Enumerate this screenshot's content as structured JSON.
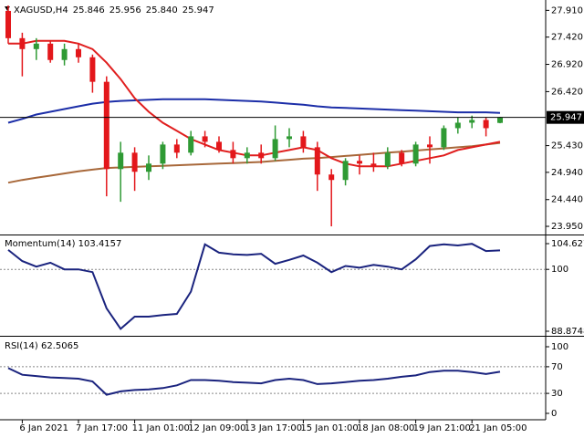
{
  "chart_data": [
    {
      "type": "candlestick",
      "title": "XAGUSD,H4",
      "header_values": [
        25.846,
        25.956,
        {
          "value": 25.84,
          "label": "25.840"
        },
        25.947
      ],
      "last_price": 25.947,
      "categories": [
        null,
        "6 Jan 2021",
        null,
        null,
        null,
        "7 Jan 17:00",
        null,
        null,
        null,
        "11 Jan 01:00",
        null,
        null,
        null,
        "12 Jan 09:00",
        null,
        null,
        null,
        "13 Jan 17:00",
        null,
        null,
        null,
        "15 Jan 01:00",
        null,
        null,
        null,
        "18 Jan 08:00",
        null,
        null,
        null,
        "19 Jan 21:00",
        null,
        null,
        null,
        "21 Jan 05:00",
        null,
        null
      ],
      "open": [
        27.9,
        27.4,
        27.2,
        27.3,
        27.0,
        27.2,
        27.05,
        26.6,
        25.0,
        25.3,
        24.95,
        25.1,
        25.45,
        25.3,
        25.6,
        25.5,
        25.35,
        25.2,
        25.3,
        25.2,
        25.55,
        25.6,
        25.4,
        24.9,
        24.8,
        25.15,
        25.1,
        25.05,
        25.3,
        25.1,
        25.45,
        25.4,
        25.75,
        25.85,
        25.9,
        25.846
      ],
      "high": [
        28.0,
        27.5,
        27.4,
        27.35,
        27.3,
        27.3,
        27.1,
        26.7,
        25.5,
        25.4,
        25.25,
        25.5,
        25.55,
        25.7,
        25.7,
        25.6,
        25.5,
        25.4,
        25.45,
        25.8,
        25.75,
        25.7,
        25.5,
        25.0,
        25.2,
        25.25,
        25.3,
        25.4,
        25.35,
        25.5,
        25.6,
        25.8,
        25.95,
        25.98,
        25.95,
        25.956
      ],
      "low": [
        27.3,
        26.7,
        27.0,
        26.95,
        26.9,
        26.95,
        26.4,
        24.5,
        24.4,
        24.6,
        24.8,
        25.0,
        25.2,
        25.25,
        25.4,
        25.3,
        25.1,
        25.1,
        25.1,
        25.15,
        25.4,
        25.3,
        24.6,
        23.95,
        24.7,
        24.9,
        24.95,
        25.0,
        25.05,
        25.05,
        25.1,
        25.35,
        25.65,
        25.75,
        25.6,
        25.84
      ],
      "close": [
        27.4,
        27.2,
        27.3,
        27.0,
        27.2,
        27.05,
        26.6,
        25.0,
        25.3,
        24.95,
        25.1,
        25.45,
        25.3,
        25.6,
        25.5,
        25.35,
        25.2,
        25.3,
        25.2,
        25.55,
        25.6,
        25.4,
        24.9,
        24.8,
        25.15,
        25.1,
        25.05,
        25.3,
        25.1,
        25.45,
        25.4,
        25.75,
        25.85,
        25.9,
        25.75,
        25.947
      ],
      "up_color": "#2f9a34",
      "down_color": "#e3171b",
      "series": [
        {
          "color": "#a8683a",
          "values": [
            24.75,
            24.8,
            24.84,
            24.88,
            24.92,
            24.96,
            24.99,
            25.02,
            25.03,
            25.04,
            25.05,
            25.06,
            25.07,
            25.08,
            25.09,
            25.1,
            25.11,
            25.12,
            25.13,
            25.15,
            25.17,
            25.19,
            25.2,
            25.22,
            25.24,
            25.26,
            25.28,
            25.3,
            25.32,
            25.34,
            25.36,
            25.38,
            25.4,
            25.42,
            25.45,
            25.48
          ]
        },
        {
          "color": "#1c2ea8",
          "values": [
            25.85,
            25.92,
            26.0,
            26.05,
            26.1,
            26.15,
            26.2,
            26.23,
            26.25,
            26.26,
            26.27,
            26.28,
            26.28,
            26.28,
            26.28,
            26.27,
            26.26,
            26.25,
            26.24,
            26.22,
            26.2,
            26.18,
            26.15,
            26.13,
            26.12,
            26.11,
            26.1,
            26.09,
            26.08,
            26.07,
            26.06,
            26.05,
            26.04,
            26.04,
            26.04,
            26.03
          ]
        },
        {
          "color": "#e01e1e",
          "values": [
            27.3,
            27.3,
            27.35,
            27.35,
            27.35,
            27.3,
            27.2,
            26.95,
            26.65,
            26.3,
            26.05,
            25.85,
            25.7,
            25.55,
            25.45,
            25.35,
            25.3,
            25.25,
            25.25,
            25.3,
            25.35,
            25.4,
            25.35,
            25.2,
            25.1,
            25.05,
            25.05,
            25.05,
            25.1,
            25.15,
            25.2,
            25.25,
            25.35,
            25.4,
            25.45,
            25.5
          ]
        }
      ],
      "ylim": [
        23.8,
        28.1
      ],
      "yticks": [
        {
          "value": 27.91,
          "label": "27.910"
        },
        {
          "value": 27.42,
          "label": "27.420"
        },
        {
          "value": 26.92,
          "label": "26.920"
        },
        {
          "value": 26.42,
          "label": "26.420"
        },
        {
          "value": 25.43,
          "label": "25.430"
        },
        {
          "value": 24.94,
          "label": "24.940"
        },
        {
          "value": 24.44,
          "label": "24.440"
        },
        {
          "value": 23.95,
          "label": "23.950"
        }
      ]
    },
    {
      "type": "line",
      "title": "Momentum(14) 103.4157",
      "color": "#1a237e",
      "values": [
        103.5,
        101.5,
        100.5,
        101.2,
        100,
        100,
        99.5,
        93,
        89.3,
        91.5,
        91.5,
        91.8,
        92,
        96,
        104.5,
        103,
        102.7,
        102.6,
        102.8,
        101,
        101.7,
        102.5,
        101.2,
        99.5,
        100.6,
        100.3,
        100.8,
        100.5,
        100,
        101.8,
        104.2,
        104.5,
        104.3,
        104.6,
        103.3,
        103.4157
      ],
      "ylim": [
        88.8748,
        104.6279
      ],
      "yticks": [
        104.6279,
        100,
        88.8748
      ],
      "levels": [
        100
      ]
    },
    {
      "type": "line",
      "title": "RSI(14) 62.5065",
      "color": "#1a237e",
      "values": [
        68,
        58,
        56,
        54,
        53,
        52,
        48,
        28,
        33,
        35,
        36,
        38,
        42,
        50,
        50,
        49,
        47,
        46,
        45,
        50,
        52,
        50,
        44,
        45,
        47,
        49,
        50,
        52,
        55,
        57,
        62,
        64,
        64,
        62,
        59,
        62.5065
      ],
      "ylim": [
        0,
        100
      ],
      "yticks": [
        100,
        70,
        30,
        0
      ],
      "levels": [
        70,
        30
      ]
    }
  ]
}
